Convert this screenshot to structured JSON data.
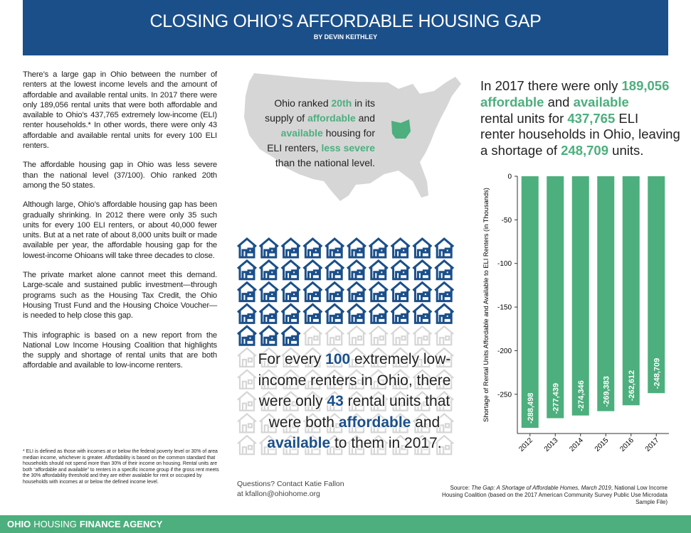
{
  "header": {
    "title": "CLOSING OHIO’S AFFORDABLE HOUSING GAP",
    "byline": "BY DEVIN KEITHLEY"
  },
  "palette": {
    "green": "#4caf7d",
    "blue": "#1b4f8a",
    "gray": "#d6d6d6"
  },
  "body_paragraphs": [
    "There’s a large gap in Ohio between the number of renters at the lowest income levels and the amount of affordable and available rental units. In 2017 there were only 189,056 rental units that were both affordable and available to Ohio’s 437,765 extremely low-income (ELI) renter households.* In other words, there were only 43 affordable and available rental units for every 100 ELI renters.",
    "The affordable housing gap in Ohio was less severe than the national level (37/100). Ohio ranked 20th among the 50 states.",
    "Although large, Ohio’s affordable housing gap has been gradually shrinking. In 2012 there were only 35 such units for every 100 ELI renters, or about 40,000 fewer units. But at a net rate of about 8,000 units built or made available per year, the affordable housing gap for the lowest-income Ohioans will take three decades to close.",
    "The private market alone cannot meet this demand. Large-scale and sustained public investment—through programs such as the Housing Tax Credit, the Ohio Housing Trust Fund and the Housing Choice Voucher—is needed to help close this gap.",
    "This infographic is based on a new report from the National Low Income Housing Coalition that highlights the supply and shortage of rental units that are both affordable and available to low-income renters."
  ],
  "footnote": "* ELI is defined as those with incomes at or below the federal poverty level or 30% of area median income, whichever is greater. Affordability is based on the common standard that households should not spend more than 30% of their income on housing. Rental units are both “affordable and available” to renters in a specific income group if the gross rent meets the 30% affordability threshold and they are either available for rent or occupied by households with incomes at or below the defined income level.",
  "map_callout": {
    "lines": [
      [
        {
          "text": "Ohio ranked "
        },
        {
          "text": "20th",
          "color": "green"
        },
        {
          "text": " in its"
        }
      ],
      [
        {
          "text": "supply of "
        },
        {
          "text": "affordable",
          "color": "green"
        },
        {
          "text": " and"
        }
      ],
      [
        {
          "text": "available",
          "color": "green"
        },
        {
          "text": " housing for"
        }
      ],
      [
        {
          "text": "ELI renters, "
        },
        {
          "text": "less severe",
          "color": "green"
        }
      ],
      [
        {
          "text": "than the national level."
        }
      ]
    ]
  },
  "icon_grid": {
    "total": 100,
    "filled": 43
  },
  "icon_statement": {
    "lines": [
      [
        {
          "text": "For every "
        },
        {
          "text": "100",
          "color": "blue"
        },
        {
          "text": " extremely low-"
        }
      ],
      [
        {
          "text": "income renters in Ohio, there"
        }
      ],
      [
        {
          "text": "were only "
        },
        {
          "text": "43",
          "color": "blue"
        },
        {
          "text": " rental units that"
        }
      ],
      [
        {
          "text": "were both "
        },
        {
          "text": "affordable",
          "color": "blue"
        },
        {
          "text": " and"
        }
      ],
      [
        {
          "text": "available",
          "color": "blue"
        },
        {
          "text": " to them in 2017."
        }
      ]
    ]
  },
  "chart_statement": {
    "lines": [
      [
        {
          "text": "In 2017 there were only "
        },
        {
          "text": "189,056",
          "color": "green"
        }
      ],
      [
        {
          "text": "affordable",
          "color": "green"
        },
        {
          "text": " and "
        },
        {
          "text": "available",
          "color": "green"
        }
      ],
      [
        {
          "text": "rental units for "
        },
        {
          "text": "437,765",
          "color": "green"
        },
        {
          "text": " ELI"
        }
      ],
      [
        {
          "text": "renter households in Ohio, leaving"
        }
      ],
      [
        {
          "text": "a shortage of "
        },
        {
          "text": "248,709",
          "color": "green"
        },
        {
          "text": " units."
        }
      ]
    ]
  },
  "chart_data": {
    "type": "bar",
    "y_label": "Shortage of Rental Units Affordable and Available to ELI Renters (in Thousands)",
    "categories": [
      "2012",
      "2013",
      "2014",
      "2015",
      "2016",
      "2017"
    ],
    "values": [
      -288.498,
      -277.439,
      -274.346,
      -269.383,
      -262.612,
      -248.709
    ],
    "value_labels": [
      "-288,498",
      "-277,439",
      "-274,346",
      "-269,383",
      "-262,612",
      "-248,709"
    ],
    "color": "#4caf7d",
    "ylim": [
      -295,
      0
    ],
    "yticks": [
      0,
      -50,
      -100,
      -150,
      -200,
      -250
    ],
    "grid": false
  },
  "contact": [
    "Questions? Contact Katie Fallon",
    "at kfallon@ohiohome.org"
  ],
  "source": [
    {
      "text": "Source: "
    },
    {
      "text": "The Gap: A Shortage of Affordable Homes, March 2019",
      "italic": true
    },
    {
      "text": ", National Low Income Housing Coalition (based on the 2017 American Community Survey Public Use Microdata Sample File)"
    }
  ],
  "footer": [
    {
      "text": "OHIO",
      "bold": true
    },
    {
      "text": "HOUSING"
    },
    {
      "text": "FINANCE AGENCY",
      "bold": true
    }
  ]
}
